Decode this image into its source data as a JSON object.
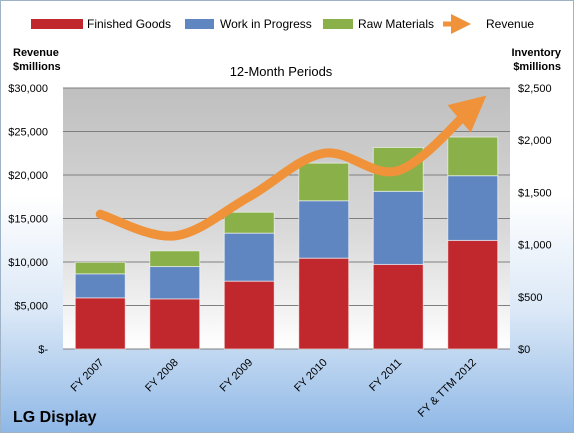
{
  "chart_data": {
    "type": "bar",
    "title": "12-Month Periods",
    "company": "LG Display",
    "left_axis_title": [
      "Revenue",
      "$millions"
    ],
    "right_axis_title": [
      "Inventory",
      "$millions"
    ],
    "categories": [
      "FY 2007",
      "FY 2008",
      "FY 2009",
      "FY 2010",
      "FY 2011",
      "FY & TTM 2012"
    ],
    "left_ylim": [
      0,
      30000
    ],
    "right_ylim": [
      0,
      2500
    ],
    "left_ticks": [
      "$-",
      "$5,000",
      "$10,000",
      "$15,000",
      "$20,000",
      "$25,000",
      "$30,000"
    ],
    "right_ticks": [
      "$0",
      "$500",
      "$1,000",
      "$1,500",
      "$2,000",
      "$2,500"
    ],
    "stacked_series": [
      {
        "name": "Finished Goods",
        "color": "#c0282d",
        "values": [
          490,
          480,
          650,
          870,
          810,
          1040
        ]
      },
      {
        "name": "Work in Progress",
        "color": "#5f86c0",
        "values": [
          230,
          310,
          460,
          550,
          700,
          620
        ]
      },
      {
        "name": "Raw Materials",
        "color": "#8ab04a",
        "values": [
          110,
          150,
          200,
          360,
          420,
          370
        ]
      }
    ],
    "line_series": {
      "name": "Revenue",
      "color": "#f0923a",
      "values": [
        15500,
        13000,
        17500,
        22500,
        20500,
        27800
      ]
    },
    "grid": true,
    "legend_position": "top"
  }
}
